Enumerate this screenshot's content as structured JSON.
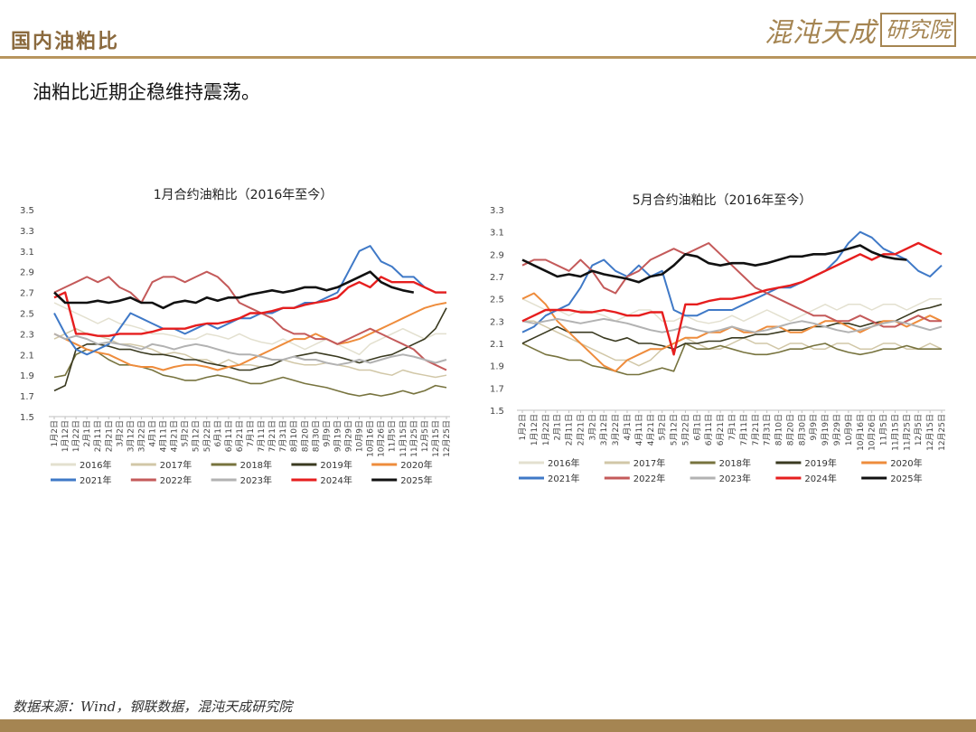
{
  "header": {
    "title": "国内油粕比",
    "logo_script": "混沌天成",
    "logo_seal": "研究院"
  },
  "subtitle": "油粕比近期企稳维持震荡。",
  "source": "数据来源：Wind，钢联数据，混沌天成研究院",
  "chart_data": [
    {
      "type": "line",
      "title": "1月合约油粕比（2016年至今）",
      "xlabel": "",
      "ylabel": "",
      "ylim": [
        1.5,
        3.5
      ],
      "y_ticks": [
        "1.5",
        "1.7",
        "1.9",
        "2.1",
        "2.3",
        "2.5",
        "2.7",
        "2.9",
        "3.1",
        "3.3",
        "3.5"
      ],
      "x_tick_labels": [
        "1月2日",
        "1月12日",
        "1月22日",
        "2月1日",
        "2月11日",
        "2月21日",
        "3月2日",
        "3月12日",
        "3月22日",
        "4月1日",
        "4月11日",
        "4月21日",
        "5月2日",
        "5月12日",
        "5月22日",
        "6月1日",
        "6月11日",
        "6月21日",
        "7月1日",
        "7月11日",
        "7月21日",
        "7月31日",
        "8月10日",
        "8月20日",
        "8月30日",
        "9月9日",
        "9月19日",
        "9月29日",
        "10月9日",
        "10月16日",
        "10月26日",
        "11月5日",
        "11月15日",
        "11月25日",
        "12月5日",
        "12月15日",
        "12月25日"
      ],
      "legend_position": "bottom",
      "grid": false,
      "series": [
        {
          "name": "2016年",
          "color": "#e3e0cf",
          "width": 1.5,
          "values": [
            2.6,
            2.55,
            2.5,
            2.45,
            2.4,
            2.45,
            2.4,
            2.38,
            2.35,
            2.3,
            2.3,
            2.28,
            2.25,
            2.25,
            2.3,
            2.28,
            2.25,
            2.3,
            2.25,
            2.22,
            2.2,
            2.25,
            2.2,
            2.15,
            2.2,
            2.25,
            2.2,
            2.15,
            2.1,
            2.2,
            2.25,
            2.3,
            2.35,
            2.3,
            2.25,
            2.3,
            2.3
          ]
        },
        {
          "name": "2017年",
          "color": "#d1c7a7",
          "width": 1.5,
          "values": [
            2.25,
            2.3,
            2.35,
            2.3,
            2.28,
            2.25,
            2.2,
            2.2,
            2.18,
            2.15,
            2.1,
            2.12,
            2.1,
            2.05,
            2.05,
            2.0,
            2.05,
            2.0,
            2.0,
            1.98,
            2.0,
            2.05,
            2.02,
            2.0,
            2.0,
            2.02,
            2.0,
            1.98,
            1.95,
            1.95,
            1.92,
            1.9,
            1.95,
            1.92,
            1.9,
            1.88,
            1.9
          ]
        },
        {
          "name": "2018年",
          "color": "#77733e",
          "width": 1.6,
          "values": [
            1.88,
            1.9,
            2.1,
            2.15,
            2.12,
            2.05,
            2.0,
            2.0,
            1.98,
            1.95,
            1.9,
            1.88,
            1.85,
            1.85,
            1.88,
            1.9,
            1.88,
            1.85,
            1.82,
            1.82,
            1.85,
            1.88,
            1.85,
            1.82,
            1.8,
            1.78,
            1.75,
            1.72,
            1.7,
            1.72,
            1.7,
            1.72,
            1.75,
            1.72,
            1.75,
            1.8,
            1.78
          ]
        },
        {
          "name": "2019年",
          "color": "#3a3a20",
          "width": 1.6,
          "values": [
            1.75,
            1.8,
            2.15,
            2.2,
            2.2,
            2.18,
            2.15,
            2.15,
            2.12,
            2.1,
            2.1,
            2.08,
            2.05,
            2.05,
            2.02,
            2.0,
            1.98,
            1.95,
            1.95,
            1.98,
            2.0,
            2.05,
            2.08,
            2.1,
            2.12,
            2.1,
            2.08,
            2.05,
            2.02,
            2.05,
            2.08,
            2.1,
            2.15,
            2.2,
            2.25,
            2.35,
            2.55
          ]
        },
        {
          "name": "2020年",
          "color": "#ee8c3c",
          "width": 2.0,
          "values": [
            2.3,
            2.25,
            2.2,
            2.15,
            2.12,
            2.1,
            2.05,
            2.0,
            1.98,
            1.98,
            1.95,
            1.98,
            2.0,
            2.0,
            1.98,
            1.95,
            1.98,
            2.0,
            2.05,
            2.1,
            2.15,
            2.2,
            2.25,
            2.25,
            2.3,
            2.25,
            2.2,
            2.22,
            2.25,
            2.3,
            2.35,
            2.4,
            2.45,
            2.5,
            2.55,
            2.58,
            2.6
          ]
        },
        {
          "name": "2021年",
          "color": "#3f79c7",
          "width": 2.0,
          "values": [
            2.5,
            2.3,
            2.15,
            2.1,
            2.15,
            2.2,
            2.35,
            2.5,
            2.45,
            2.4,
            2.35,
            2.35,
            2.3,
            2.35,
            2.4,
            2.35,
            2.4,
            2.45,
            2.45,
            2.5,
            2.5,
            2.55,
            2.55,
            2.6,
            2.6,
            2.65,
            2.7,
            2.9,
            3.1,
            3.15,
            3.0,
            2.95,
            2.85,
            2.85,
            2.75,
            2.7,
            2.7
          ]
        },
        {
          "name": "2022年",
          "color": "#c45a5a",
          "width": 2.0,
          "values": [
            2.7,
            2.75,
            2.8,
            2.85,
            2.8,
            2.85,
            2.75,
            2.7,
            2.6,
            2.8,
            2.85,
            2.85,
            2.8,
            2.85,
            2.9,
            2.85,
            2.75,
            2.6,
            2.55,
            2.5,
            2.45,
            2.35,
            2.3,
            2.3,
            2.25,
            2.25,
            2.2,
            2.25,
            2.3,
            2.35,
            2.3,
            2.25,
            2.2,
            2.15,
            2.05,
            2.0,
            1.95
          ]
        },
        {
          "name": "2023年",
          "color": "#b2b2b2",
          "width": 2.0,
          "values": [
            2.3,
            2.25,
            2.28,
            2.25,
            2.2,
            2.22,
            2.2,
            2.18,
            2.15,
            2.2,
            2.18,
            2.15,
            2.18,
            2.2,
            2.18,
            2.15,
            2.12,
            2.1,
            2.1,
            2.08,
            2.05,
            2.05,
            2.08,
            2.05,
            2.05,
            2.02,
            2.0,
            2.02,
            2.05,
            2.02,
            2.05,
            2.08,
            2.1,
            2.08,
            2.05,
            2.02,
            2.05
          ]
        },
        {
          "name": "2024年",
          "color": "#e61e1e",
          "width": 2.4,
          "values": [
            2.65,
            2.7,
            2.3,
            2.3,
            2.28,
            2.28,
            2.3,
            2.3,
            2.3,
            2.32,
            2.35,
            2.35,
            2.35,
            2.38,
            2.4,
            2.4,
            2.42,
            2.45,
            2.5,
            2.5,
            2.52,
            2.55,
            2.55,
            2.58,
            2.6,
            2.62,
            2.65,
            2.75,
            2.8,
            2.75,
            2.85,
            2.8,
            2.8,
            2.8,
            2.75,
            2.7,
            2.7
          ]
        },
        {
          "name": "2025年",
          "color": "#111111",
          "width": 2.6,
          "values": [
            2.7,
            2.6,
            2.6,
            2.6,
            2.62,
            2.6,
            2.62,
            2.65,
            2.6,
            2.6,
            2.55,
            2.6,
            2.62,
            2.6,
            2.65,
            2.62,
            2.65,
            2.65,
            2.68,
            2.7,
            2.72,
            2.7,
            2.72,
            2.75,
            2.75,
            2.72,
            2.75,
            2.8,
            2.85,
            2.9,
            2.8,
            2.75,
            2.72,
            2.7,
            null,
            null,
            null
          ]
        }
      ]
    },
    {
      "type": "line",
      "title": "5月合约油粕比（2016年至今）",
      "xlabel": "",
      "ylabel": "",
      "ylim": [
        1.5,
        3.3
      ],
      "y_ticks": [
        "1.5",
        "1.7",
        "1.9",
        "2.1",
        "2.3",
        "2.5",
        "2.7",
        "2.9",
        "3.1",
        "3.3"
      ],
      "x_tick_labels": [
        "1月2日",
        "1月12日",
        "1月22日",
        "2月1日",
        "2月11日",
        "2月21日",
        "3月2日",
        "3月12日",
        "3月22日",
        "4月1日",
        "4月11日",
        "4月21日",
        "5月2日",
        "5月12日",
        "5月22日",
        "6月1日",
        "6月11日",
        "6月21日",
        "7月1日",
        "7月11日",
        "7月21日",
        "7月31日",
        "8月10日",
        "8月20日",
        "8月30日",
        "9月9日",
        "9月19日",
        "9月29日",
        "10月9日",
        "10月16日",
        "10月26日",
        "11月5日",
        "11月15日",
        "11月25日",
        "12月5日",
        "12月15日",
        "12月25日"
      ],
      "legend_position": "bottom",
      "grid": false,
      "series": [
        {
          "name": "2016年",
          "color": "#e3e0cf",
          "width": 1.5,
          "values": [
            2.5,
            2.45,
            2.4,
            2.4,
            2.35,
            2.4,
            2.38,
            2.35,
            2.3,
            2.35,
            2.4,
            2.4,
            2.3,
            2.3,
            2.35,
            2.3,
            2.28,
            2.3,
            2.35,
            2.3,
            2.35,
            2.4,
            2.35,
            2.3,
            2.35,
            2.4,
            2.45,
            2.4,
            2.45,
            2.45,
            2.4,
            2.45,
            2.45,
            2.4,
            2.45,
            2.5,
            2.5
          ]
        },
        {
          "name": "2017年",
          "color": "#d1c7a7",
          "width": 1.5,
          "values": [
            2.3,
            2.3,
            2.25,
            2.2,
            2.15,
            2.1,
            2.05,
            2.0,
            1.95,
            1.95,
            1.9,
            1.95,
            2.05,
            2.1,
            2.15,
            2.1,
            2.05,
            2.05,
            2.1,
            2.15,
            2.1,
            2.1,
            2.05,
            2.1,
            2.1,
            2.05,
            2.05,
            2.1,
            2.1,
            2.05,
            2.05,
            2.1,
            2.1,
            2.05,
            2.05,
            2.1,
            2.05
          ]
        },
        {
          "name": "2018年",
          "color": "#77733e",
          "width": 1.6,
          "values": [
            2.1,
            2.05,
            2.0,
            1.98,
            1.95,
            1.95,
            1.9,
            1.88,
            1.85,
            1.82,
            1.82,
            1.85,
            1.88,
            1.85,
            2.1,
            2.05,
            2.05,
            2.08,
            2.05,
            2.02,
            2.0,
            2.0,
            2.02,
            2.05,
            2.05,
            2.08,
            2.1,
            2.05,
            2.02,
            2.0,
            2.02,
            2.05,
            2.05,
            2.08,
            2.05,
            2.05,
            2.05
          ]
        },
        {
          "name": "2019年",
          "color": "#3a3a20",
          "width": 1.6,
          "values": [
            2.1,
            2.15,
            2.2,
            2.25,
            2.2,
            2.2,
            2.2,
            2.15,
            2.12,
            2.15,
            2.1,
            2.1,
            2.08,
            2.05,
            2.1,
            2.1,
            2.12,
            2.12,
            2.15,
            2.15,
            2.18,
            2.18,
            2.2,
            2.22,
            2.22,
            2.25,
            2.25,
            2.28,
            2.28,
            2.25,
            2.28,
            2.3,
            2.3,
            2.35,
            2.4,
            2.42,
            2.45
          ]
        },
        {
          "name": "2020年",
          "color": "#ee8c3c",
          "width": 2.0,
          "values": [
            2.5,
            2.55,
            2.45,
            2.3,
            2.2,
            2.1,
            2.0,
            1.9,
            1.85,
            1.95,
            2.0,
            2.05,
            2.05,
            2.1,
            2.15,
            2.15,
            2.2,
            2.2,
            2.25,
            2.2,
            2.2,
            2.25,
            2.25,
            2.2,
            2.2,
            2.25,
            2.3,
            2.3,
            2.25,
            2.2,
            2.25,
            2.3,
            2.3,
            2.25,
            2.3,
            2.35,
            2.3
          ]
        },
        {
          "name": "2021年",
          "color": "#3f79c7",
          "width": 2.0,
          "values": [
            2.2,
            2.25,
            2.35,
            2.4,
            2.45,
            2.6,
            2.8,
            2.85,
            2.75,
            2.7,
            2.8,
            2.7,
            2.75,
            2.4,
            2.35,
            2.35,
            2.4,
            2.4,
            2.4,
            2.45,
            2.5,
            2.55,
            2.6,
            2.6,
            2.65,
            2.7,
            2.75,
            2.85,
            3.0,
            3.1,
            3.05,
            2.95,
            2.9,
            2.85,
            2.75,
            2.7,
            2.8
          ]
        },
        {
          "name": "2022年",
          "color": "#c45a5a",
          "width": 2.0,
          "values": [
            2.8,
            2.85,
            2.85,
            2.8,
            2.75,
            2.85,
            2.75,
            2.6,
            2.55,
            2.7,
            2.75,
            2.85,
            2.9,
            2.95,
            2.9,
            2.95,
            3.0,
            2.9,
            2.8,
            2.7,
            2.6,
            2.55,
            2.5,
            2.45,
            2.4,
            2.35,
            2.35,
            2.3,
            2.3,
            2.35,
            2.3,
            2.25,
            2.25,
            2.3,
            2.35,
            2.3,
            2.3
          ]
        },
        {
          "name": "2023年",
          "color": "#b2b2b2",
          "width": 2.0,
          "values": [
            2.3,
            2.28,
            2.3,
            2.32,
            2.3,
            2.28,
            2.3,
            2.32,
            2.3,
            2.28,
            2.25,
            2.22,
            2.2,
            2.22,
            2.25,
            2.22,
            2.2,
            2.22,
            2.25,
            2.22,
            2.2,
            2.22,
            2.25,
            2.28,
            2.3,
            2.28,
            2.25,
            2.22,
            2.2,
            2.22,
            2.25,
            2.28,
            2.3,
            2.28,
            2.25,
            2.22,
            2.25
          ]
        },
        {
          "name": "2024年",
          "color": "#e61e1e",
          "width": 2.4,
          "values": [
            2.3,
            2.35,
            2.4,
            2.4,
            2.4,
            2.38,
            2.38,
            2.4,
            2.38,
            2.35,
            2.35,
            2.38,
            2.38,
            2.0,
            2.45,
            2.45,
            2.48,
            2.5,
            2.5,
            2.52,
            2.55,
            2.58,
            2.6,
            2.62,
            2.65,
            2.7,
            2.75,
            2.8,
            2.85,
            2.9,
            2.85,
            2.9,
            2.9,
            2.95,
            3.0,
            2.95,
            2.9
          ]
        },
        {
          "name": "2025年",
          "color": "#111111",
          "width": 2.6,
          "values": [
            2.85,
            2.8,
            2.75,
            2.7,
            2.72,
            2.7,
            2.75,
            2.72,
            2.7,
            2.68,
            2.65,
            2.7,
            2.72,
            2.8,
            2.9,
            2.88,
            2.82,
            2.8,
            2.82,
            2.82,
            2.8,
            2.82,
            2.85,
            2.88,
            2.88,
            2.9,
            2.9,
            2.92,
            2.95,
            2.98,
            2.92,
            2.88,
            2.86,
            2.85,
            null,
            null,
            null
          ]
        }
      ]
    }
  ]
}
